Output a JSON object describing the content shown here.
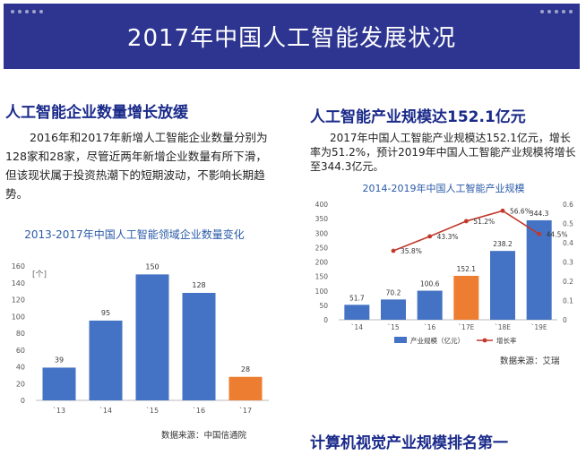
{
  "banner": {
    "title": "2017年中国人工智能发展状况"
  },
  "left": {
    "heading": "人工智能企业数量增长放缓",
    "paragraph": "2016年和2017年新增人工智能企业数量分别为128家和28家，尽管近两年新增企业数量有所下滑，但该现状属于投资热潮下的短期波动，不影响长期趋势。",
    "source": "数据来源：中国信通院"
  },
  "right": {
    "heading": "人工智能产业规模达152.1亿元",
    "paragraph": "2017年中国人工智能产业规模达152.1亿元，增长率为51.2%，预计2019年中国人工智能产业规模将增长至344.3亿元。",
    "source": "数据来源：艾瑞"
  },
  "bottom": {
    "heading": "计算机视觉产业规模排名第一"
  },
  "colors": {
    "banner": "#2d3591",
    "bar": "#4472c4",
    "highlight": "#ed7d31",
    "line": "#c0392b"
  },
  "chart_data": [
    {
      "type": "bar",
      "title": "2013-2017年中国人工智能领域企业数量变化",
      "unit_label": "[个]",
      "categories": [
        "`13",
        "`14",
        "`15",
        "`16",
        "`17"
      ],
      "values": [
        39,
        95,
        150,
        128,
        28
      ],
      "highlight_index": 4,
      "ylim": [
        0,
        160
      ],
      "yticks": [
        0,
        20,
        40,
        60,
        80,
        100,
        120,
        140,
        160
      ],
      "grid": false
    },
    {
      "type": "bar",
      "title": "2014-2019年中国人工智能产业规模",
      "categories": [
        "`14",
        "`15",
        "`16",
        "`17E",
        "`18E",
        "`19E"
      ],
      "series": [
        {
          "name": "产业规模（亿元）",
          "type": "bar",
          "values": [
            51.7,
            70.2,
            100.6,
            152.1,
            238.2,
            344.3
          ],
          "value_labels": [
            "51.7",
            "70.2",
            "100.6",
            "152.1",
            "238.2",
            "344.3"
          ]
        },
        {
          "name": "增长率",
          "type": "line",
          "axis": "right",
          "values": [
            null,
            0.358,
            0.433,
            0.512,
            0.566,
            0.445
          ],
          "value_labels": [
            "",
            "35.8%",
            "43.3%",
            "51.2%",
            "56.6%",
            "44.5%"
          ]
        }
      ],
      "highlight_index": 3,
      "ylim": [
        0,
        400
      ],
      "yticks": [
        0,
        50,
        100,
        150,
        200,
        250,
        300,
        350,
        400
      ],
      "y2lim": [
        0,
        0.6
      ],
      "y2ticks": [
        "0",
        "0.1",
        "0.2",
        "0.3",
        "0.4",
        "0.5",
        "0.6"
      ],
      "legend_position": "bottom",
      "grid": false
    }
  ]
}
